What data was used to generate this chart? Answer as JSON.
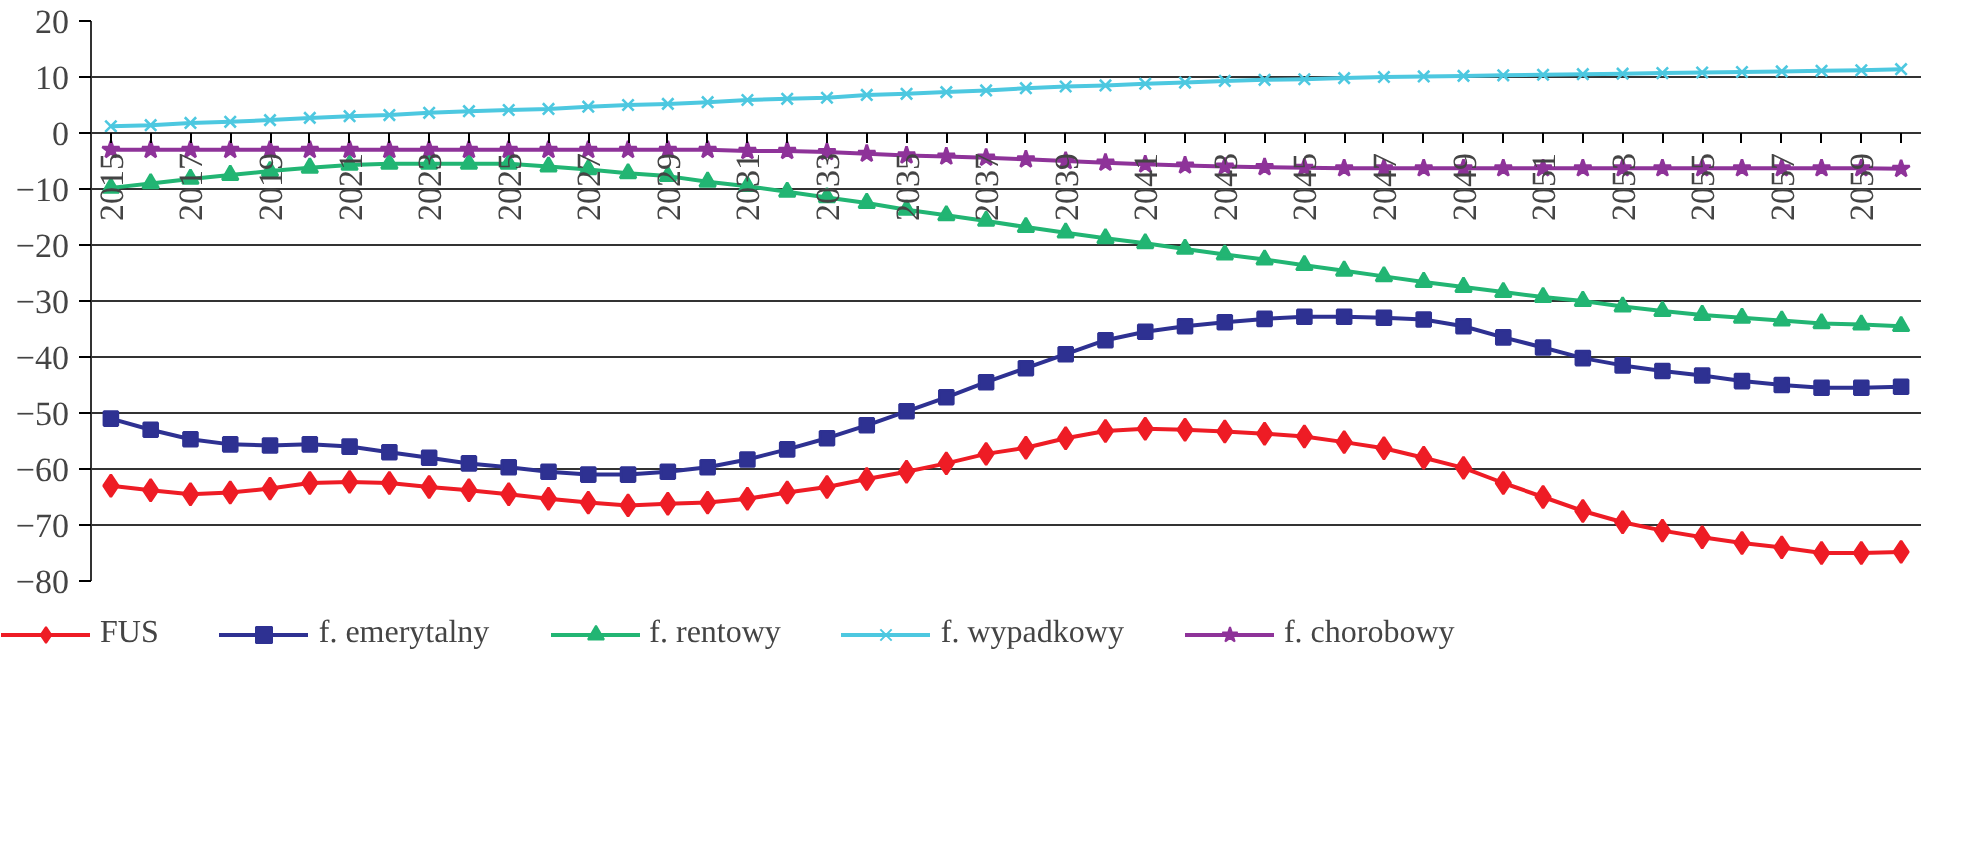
{
  "chart_data": {
    "type": "line",
    "categories": [
      "2015",
      null,
      "2017",
      null,
      "2019",
      null,
      "2021",
      null,
      "2023",
      null,
      "2025",
      null,
      "2027",
      null,
      "2029",
      null,
      "2031",
      null,
      "2033",
      null,
      "2035",
      null,
      "2037",
      null,
      "2039",
      null,
      "2041",
      null,
      "2043",
      null,
      "2045",
      null,
      "2047",
      null,
      "2049",
      null,
      "2051",
      null,
      "2053",
      null,
      "2055",
      null,
      "2057",
      null,
      "2059",
      null
    ],
    "ylim": [
      -80,
      20
    ],
    "yticks": [
      -80,
      -70,
      -60,
      -50,
      -40,
      -30,
      -20,
      -10,
      0,
      10,
      20
    ],
    "grid": "y",
    "legend": "bottom",
    "line_style": "solid",
    "series": [
      {
        "name": "FUS",
        "color": "#ee1c25",
        "marker": "diamond",
        "values": [
          -63,
          -63.8,
          -64.5,
          -64.2,
          -63.5,
          -62.5,
          -62.3,
          -62.5,
          -63.2,
          -63.8,
          -64.5,
          -65.3,
          -66,
          -66.5,
          -66.2,
          -66,
          -65.3,
          -64.2,
          -63.2,
          -61.8,
          -60.5,
          -59,
          -57.3,
          -56.2,
          -54.5,
          -53.2,
          -52.8,
          -53,
          -53.3,
          -53.7,
          -54.2,
          -55.2,
          -56.3,
          -58,
          -59.8,
          -62.5,
          -65,
          -67.5,
          -69.5,
          -71,
          -72.2,
          -73.2,
          -74,
          -75,
          -75,
          -74.8
        ]
      },
      {
        "name": "f. emerytalny",
        "color": "#2e3192",
        "marker": "square",
        "values": [
          -51,
          -53,
          -54.7,
          -55.6,
          -55.8,
          -55.6,
          -56,
          -57,
          -58,
          -59,
          -59.7,
          -60.5,
          -61,
          -61,
          -60.5,
          -59.7,
          -58.3,
          -56.5,
          -54.5,
          -52.2,
          -49.7,
          -47.2,
          -44.5,
          -42,
          -39.5,
          -37,
          -35.5,
          -34.5,
          -33.8,
          -33.2,
          -32.8,
          -32.8,
          -33,
          -33.3,
          -34.5,
          -36.5,
          -38.3,
          -40.2,
          -41.5,
          -42.5,
          -43.3,
          -44.3,
          -45,
          -45.5,
          -45.5,
          -45.3
        ]
      },
      {
        "name": "f. rentowy",
        "color": "#22b573",
        "marker": "triangle",
        "values": [
          -9.8,
          -9,
          -8.2,
          -7.5,
          -6.8,
          -6.2,
          -5.7,
          -5.5,
          -5.5,
          -5.5,
          -5.5,
          -6,
          -6.5,
          -7.2,
          -7.7,
          -8.7,
          -9.5,
          -10.5,
          -11.5,
          -12.5,
          -13.7,
          -14.7,
          -15.7,
          -16.8,
          -17.8,
          -18.8,
          -19.7,
          -20.7,
          -21.7,
          -22.6,
          -23.6,
          -24.6,
          -25.6,
          -26.6,
          -27.5,
          -28.4,
          -29.3,
          -30,
          -31,
          -31.8,
          -32.5,
          -33,
          -33.5,
          -34,
          -34.2,
          -34.5
        ]
      },
      {
        "name": "f. wypadkowy",
        "color": "#4dc8e0",
        "marker": "cross",
        "values": [
          1.2,
          1.4,
          1.8,
          2,
          2.3,
          2.7,
          3,
          3.2,
          3.6,
          3.9,
          4.1,
          4.3,
          4.7,
          5,
          5.2,
          5.5,
          5.9,
          6.1,
          6.3,
          6.8,
          7,
          7.3,
          7.6,
          8,
          8.3,
          8.5,
          8.8,
          9,
          9.3,
          9.5,
          9.6,
          9.8,
          10,
          10.1,
          10.2,
          10.3,
          10.4,
          10.5,
          10.6,
          10.7,
          10.8,
          10.9,
          11,
          11.1,
          11.2,
          11.4
        ]
      },
      {
        "name": "f. chorobowy",
        "color": "#8e3399",
        "marker": "star",
        "values": [
          -3,
          -3,
          -3,
          -3,
          -3,
          -3,
          -3,
          -3,
          -3,
          -3,
          -3,
          -3,
          -3,
          -3,
          -3,
          -3,
          -3.2,
          -3.2,
          -3.4,
          -3.7,
          -4,
          -4.2,
          -4.4,
          -4.7,
          -5,
          -5.3,
          -5.6,
          -5.8,
          -6,
          -6.1,
          -6.2,
          -6.3,
          -6.3,
          -6.3,
          -6.3,
          -6.3,
          -6.3,
          -6.3,
          -6.3,
          -6.3,
          -6.3,
          -6.3,
          -6.3,
          -6.3,
          -6.3,
          -6.4
        ]
      }
    ]
  }
}
